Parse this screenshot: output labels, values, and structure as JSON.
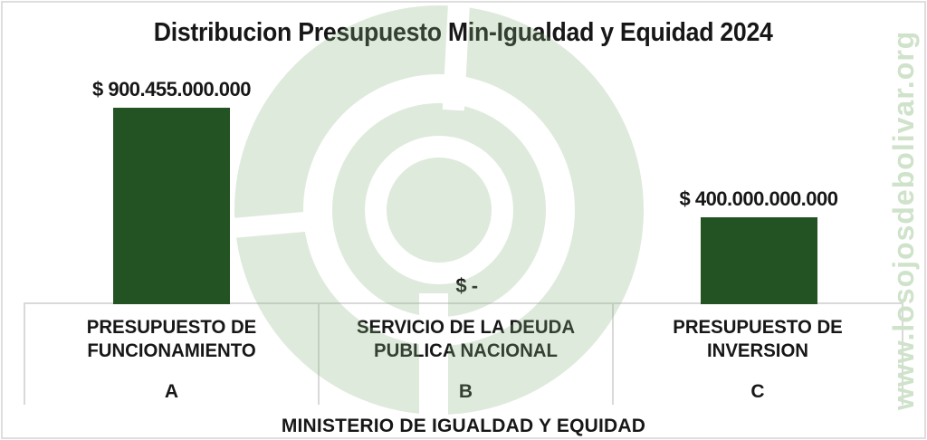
{
  "title": "Distribucion Presupuesto Min-Igualdad y Equidad 2024",
  "watermark": {
    "site_text": "www.losojosdebolivar.org",
    "logo_name": "los-ojos-de-bolivar-logo",
    "logo_green": "#86af78",
    "site_text_color": "#cfe2ca"
  },
  "colors": {
    "bar": "#235322",
    "axis_line": "#d9d9d9",
    "text": "#171717",
    "frame": "#dedede"
  },
  "chart_data": {
    "type": "bar",
    "title": "Distribucion Presupuesto Min-Igualdad y Equidad 2024",
    "categories": [
      "PRESUPUESTO DE FUNCIONAMIENTO",
      "SERVICIO DE LA DEUDA PUBLICA NACIONAL",
      "PRESUPUESTO DE INVERSION"
    ],
    "category_sublabels": [
      "A",
      "B",
      "C"
    ],
    "values": [
      900455000000,
      0,
      400000000000
    ],
    "value_labels": [
      "$ 900.455.000.000",
      "$ -",
      "$ 400.000.000.000"
    ],
    "xlabel": "MINISTERIO DE IGUALDAD Y EQUIDAD",
    "ylabel": "",
    "ylim": [
      0,
      950000000000
    ],
    "grid": false,
    "legend": false,
    "bar_color": "#235322"
  }
}
